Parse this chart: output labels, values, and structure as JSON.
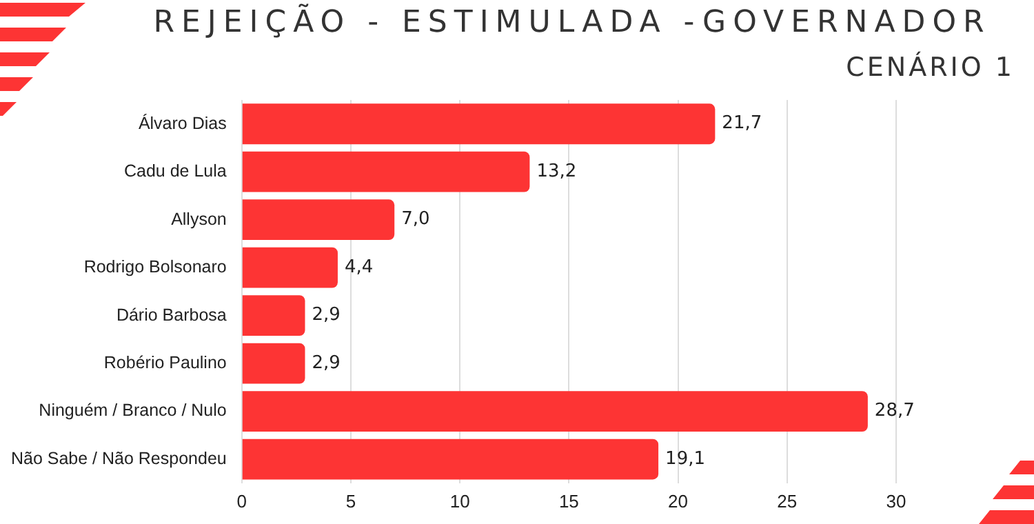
{
  "chart_data": {
    "type": "bar",
    "orientation": "horizontal",
    "title": "REJEIÇÃO - ESTIMULADA -GOVERNADOR",
    "subtitle": "CENÁRIO 1",
    "categories": [
      "Álvaro Dias",
      "Cadu de Lula",
      "Allyson",
      "Rodrigo Bolsonaro",
      "Dário Barbosa",
      "Robério Paulino",
      "Ninguém / Branco / Nulo",
      "Não Sabe / Não Respondeu"
    ],
    "values": [
      21.7,
      13.2,
      7.0,
      4.4,
      2.9,
      2.9,
      28.7,
      19.1
    ],
    "value_labels": [
      "21,7",
      "13,2",
      "7,0",
      "4,4",
      "2,9",
      "2,9",
      "28,7",
      "19,1"
    ],
    "color": "#fd3434",
    "xlim": [
      0,
      30
    ],
    "xticks": [
      0,
      5,
      10,
      15,
      20,
      25,
      30
    ],
    "grid": "x",
    "legend": false
  }
}
